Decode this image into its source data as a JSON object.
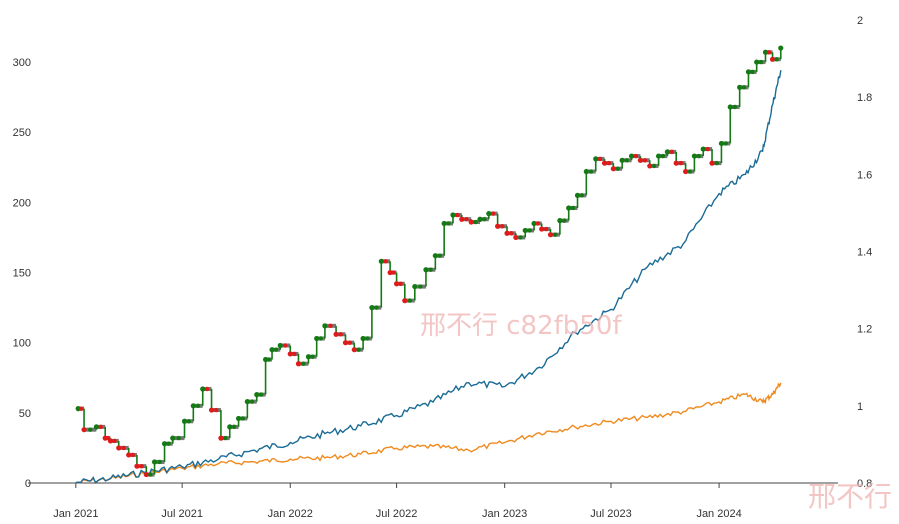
{
  "chart_data": {
    "type": "line",
    "grid": false,
    "legend": "none",
    "x_ticks": [
      "Jan 2021",
      "Jul 2021",
      "Jan 2022",
      "Jul 2022",
      "Jan 2023",
      "Jul 2023",
      "Jan 2024"
    ],
    "x_range": [
      "2020-11-01",
      "2024-07-01"
    ],
    "y_left_ticks": [
      "0",
      "50",
      "100",
      "150",
      "200",
      "250",
      "300"
    ],
    "y_left_range": [
      0,
      330
    ],
    "y_right_ticks": [
      "0.8",
      "1",
      "1.2",
      "1.4",
      "1.6",
      "1.8",
      "2"
    ],
    "y_right_range": [
      0.8,
      2.0
    ],
    "colors": {
      "step": "#147a14",
      "hold": "#777777",
      "up_marker": "#147a14",
      "down_marker": "#e01b1b",
      "blue": "#1a6b96",
      "orange": "#f08a1e"
    },
    "series": [
      {
        "axis": "left",
        "style": "step-with-markers",
        "x": [
          "2021-01-05",
          "2021-01-15",
          "2021-02-05",
          "2021-02-20",
          "2021-03-01",
          "2021-03-15",
          "2021-04-01",
          "2021-04-15",
          "2021-05-01",
          "2021-05-15",
          "2021-06-01",
          "2021-06-15",
          "2021-07-05",
          "2021-07-20",
          "2021-08-05",
          "2021-08-20",
          "2021-09-05",
          "2021-09-20",
          "2021-10-05",
          "2021-10-20",
          "2021-11-05",
          "2021-11-20",
          "2021-12-01",
          "2021-12-15",
          "2022-01-01",
          "2022-01-15",
          "2022-02-01",
          "2022-02-15",
          "2022-03-01",
          "2022-03-20",
          "2022-04-05",
          "2022-04-20",
          "2022-05-05",
          "2022-05-20",
          "2022-06-05",
          "2022-06-20",
          "2022-07-01",
          "2022-07-15",
          "2022-08-01",
          "2022-08-20",
          "2022-09-05",
          "2022-09-20",
          "2022-10-05",
          "2022-10-20",
          "2022-11-05",
          "2022-11-20",
          "2022-12-05",
          "2022-12-20",
          "2023-01-05",
          "2023-01-20",
          "2023-02-05",
          "2023-02-20",
          "2023-03-05",
          "2023-03-20",
          "2023-04-05",
          "2023-04-20",
          "2023-05-05",
          "2023-05-20",
          "2023-06-05",
          "2023-06-20",
          "2023-07-05",
          "2023-07-20",
          "2023-08-05",
          "2023-08-20",
          "2023-09-05",
          "2023-09-20",
          "2023-10-05",
          "2023-10-20",
          "2023-11-05",
          "2023-11-20",
          "2023-12-05",
          "2023-12-20",
          "2024-01-05",
          "2024-01-20",
          "2024-02-05",
          "2024-02-20",
          "2024-03-05",
          "2024-03-20",
          "2024-04-01",
          "2024-04-15"
        ],
        "values": [
          53,
          38,
          40,
          32,
          30,
          25,
          20,
          12,
          6,
          15,
          28,
          32,
          44,
          55,
          67,
          52,
          32,
          40,
          46,
          58,
          63,
          88,
          95,
          98,
          92,
          85,
          90,
          103,
          112,
          106,
          100,
          95,
          103,
          125,
          158,
          150,
          142,
          130,
          140,
          152,
          162,
          185,
          191,
          188,
          186,
          188,
          192,
          183,
          178,
          175,
          180,
          185,
          181,
          177,
          187,
          196,
          205,
          222,
          231,
          228,
          224,
          230,
          233,
          230,
          226,
          233,
          236,
          228,
          222,
          233,
          238,
          228,
          242,
          268,
          282,
          293,
          300,
          307,
          302,
          310
        ]
      },
      {
        "axis": "right",
        "style": "line",
        "x": [
          "2021-01-01",
          "2021-03-01",
          "2021-05-01",
          "2021-07-01",
          "2021-09-01",
          "2021-11-01",
          "2022-01-01",
          "2022-03-01",
          "2022-05-01",
          "2022-07-01",
          "2022-09-01",
          "2022-11-01",
          "2023-01-01",
          "2023-03-01",
          "2023-05-01",
          "2023-07-01",
          "2023-09-01",
          "2023-11-01",
          "2024-01-01",
          "2024-02-15",
          "2024-03-15",
          "2024-04-01",
          "2024-04-15"
        ],
        "values": [
          0.801,
          0.812,
          0.828,
          0.842,
          0.862,
          0.885,
          0.905,
          0.928,
          0.948,
          0.975,
          1.01,
          1.06,
          1.05,
          1.1,
          1.19,
          1.25,
          1.36,
          1.42,
          1.55,
          1.6,
          1.66,
          1.78,
          1.87
        ]
      },
      {
        "axis": "right",
        "style": "line",
        "x": [
          "2021-01-01",
          "2021-03-01",
          "2021-05-01",
          "2021-07-01",
          "2021-09-01",
          "2021-11-01",
          "2022-01-01",
          "2022-03-01",
          "2022-05-01",
          "2022-07-01",
          "2022-09-01",
          "2022-11-01",
          "2023-01-01",
          "2023-03-01",
          "2023-05-01",
          "2023-07-01",
          "2023-09-01",
          "2023-11-01",
          "2024-01-01",
          "2024-02-15",
          "2024-03-15",
          "2024-04-01",
          "2024-04-15"
        ],
        "values": [
          0.801,
          0.811,
          0.825,
          0.838,
          0.85,
          0.855,
          0.862,
          0.865,
          0.875,
          0.89,
          0.895,
          0.885,
          0.905,
          0.93,
          0.945,
          0.96,
          0.97,
          0.985,
          1.01,
          1.03,
          1.01,
          1.03,
          1.06
        ]
      }
    ]
  },
  "watermark": {
    "center": "邢不行 c82fb50f",
    "corner": "邢不行"
  }
}
